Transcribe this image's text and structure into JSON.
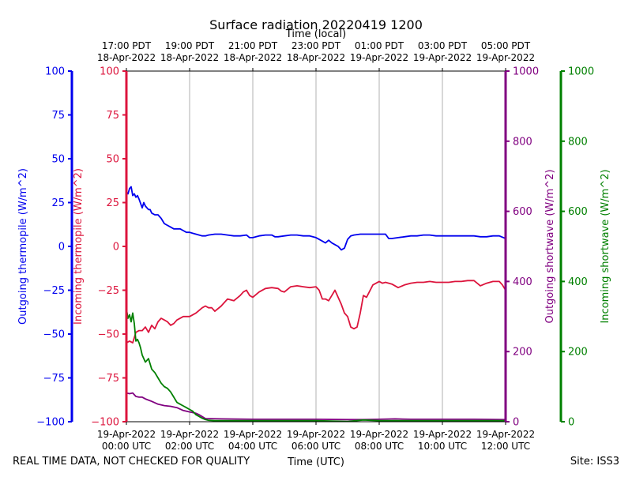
{
  "figure": {
    "title": "Surface radiation 20220419 1200",
    "top_xlabel": "Time (local)",
    "bottom_xlabel": "Time (UTC)",
    "footer_left": "REAL TIME DATA, NOT CHECKED FOR QUALITY",
    "footer_right": "Site: ISS3"
  },
  "colors": {
    "outgoing_thermopile": "#0000ee",
    "incoming_thermopile": "#dc143c",
    "outgoing_shortwave": "#800080",
    "incoming_shortwave": "#008000",
    "grid": "#b0b0b0",
    "text": "#000000"
  },
  "chart_data": {
    "type": "line",
    "x_unit": "hours since 19-Apr-2022 00:00 UTC",
    "xlim": [
      0,
      12
    ],
    "grid": {
      "x": true,
      "y": false
    },
    "bottom_ticks": [
      {
        "x": 0,
        "label": "19-Apr-2022",
        "sub": "00:00 UTC"
      },
      {
        "x": 2,
        "label": "19-Apr-2022",
        "sub": "02:00 UTC"
      },
      {
        "x": 4,
        "label": "19-Apr-2022",
        "sub": "04:00 UTC"
      },
      {
        "x": 6,
        "label": "19-Apr-2022",
        "sub": "06:00 UTC"
      },
      {
        "x": 8,
        "label": "19-Apr-2022",
        "sub": "08:00 UTC"
      },
      {
        "x": 10,
        "label": "19-Apr-2022",
        "sub": "10:00 UTC"
      },
      {
        "x": 12,
        "label": "19-Apr-2022",
        "sub": "12:00 UTC"
      }
    ],
    "top_ticks": [
      {
        "x": 0,
        "label": "17:00 PDT",
        "sub": "18-Apr-2022"
      },
      {
        "x": 2,
        "label": "19:00 PDT",
        "sub": "18-Apr-2022"
      },
      {
        "x": 4,
        "label": "21:00 PDT",
        "sub": "18-Apr-2022"
      },
      {
        "x": 6,
        "label": "23:00 PDT",
        "sub": "18-Apr-2022"
      },
      {
        "x": 8,
        "label": "01:00 PDT",
        "sub": "19-Apr-2022"
      },
      {
        "x": 10,
        "label": "03:00 PDT",
        "sub": "19-Apr-2022"
      },
      {
        "x": 12,
        "label": "05:00 PDT",
        "sub": "19-Apr-2022"
      }
    ],
    "axes": [
      {
        "id": "outgoing_thermopile",
        "label": "Outgoing thermopile (W/m^2)",
        "side": "left-outer",
        "ylim": [
          -100,
          100
        ],
        "ticks": [
          100,
          75,
          50,
          25,
          0,
          -25,
          -50,
          -75,
          -100
        ]
      },
      {
        "id": "incoming_thermopile",
        "label": "Incoming thermopile (W/m^2)",
        "side": "left-inner",
        "ylim": [
          -100,
          100
        ],
        "ticks": [
          100,
          75,
          50,
          25,
          0,
          -25,
          -50,
          -75,
          -100
        ]
      },
      {
        "id": "outgoing_shortwave",
        "label": "Outgoing shortwave (W/m^2)",
        "side": "right-inner",
        "ylim": [
          0,
          1000
        ],
        "ticks": [
          0,
          200,
          400,
          600,
          800,
          1000
        ]
      },
      {
        "id": "incoming_shortwave",
        "label": "Incoming shortwave (W/m^2)",
        "side": "right-outer",
        "ylim": [
          0,
          1000
        ],
        "ticks": [
          0,
          200,
          400,
          600,
          800,
          1000
        ]
      }
    ],
    "series": [
      {
        "name": "Outgoing thermopile (W/m^2)",
        "axis": "outgoing_thermopile",
        "x": [
          0,
          0.05,
          0.1,
          0.15,
          0.2,
          0.25,
          0.3,
          0.35,
          0.4,
          0.5,
          0.55,
          0.6,
          0.65,
          0.7,
          0.75,
          0.8,
          0.9,
          1.0,
          1.1,
          1.2,
          1.3,
          1.4,
          1.5,
          1.6,
          1.7,
          1.8,
          1.9,
          2.0,
          2.1,
          2.2,
          2.3,
          2.4,
          2.5,
          2.6,
          2.8,
          3.0,
          3.2,
          3.4,
          3.6,
          3.8,
          3.9,
          4.0,
          4.2,
          4.4,
          4.6,
          4.7,
          4.8,
          5.0,
          5.2,
          5.4,
          5.6,
          5.8,
          6.0,
          6.1,
          6.2,
          6.3,
          6.4,
          6.5,
          6.6,
          6.7,
          6.8,
          6.9,
          7.0,
          7.1,
          7.2,
          7.4,
          7.6,
          7.8,
          8.0,
          8.2,
          8.3,
          8.4,
          8.6,
          8.8,
          9.0,
          9.2,
          9.4,
          9.6,
          9.8,
          10.0,
          10.2,
          10.4,
          10.6,
          10.8,
          11.0,
          11.2,
          11.4,
          11.6,
          11.8,
          12.0
        ],
        "y": [
          31,
          30,
          33,
          34,
          29,
          30,
          28,
          29,
          27,
          22,
          25,
          23,
          22,
          21,
          21,
          19,
          18,
          18,
          16,
          13,
          12,
          11,
          10,
          10,
          10,
          9,
          8,
          8,
          7.5,
          7,
          6.5,
          6,
          6,
          6.5,
          7,
          7,
          6.5,
          6,
          6,
          6.5,
          5,
          5,
          6,
          6.5,
          6.5,
          5.5,
          5.5,
          6,
          6.5,
          6.5,
          6,
          6,
          5,
          4,
          3,
          2,
          3.5,
          2,
          1,
          0,
          -2,
          -1,
          4,
          6,
          6.5,
          7,
          7,
          7,
          7,
          7,
          4.5,
          4.5,
          5,
          5.5,
          6,
          6,
          6.5,
          6.5,
          6,
          6,
          6,
          6,
          6,
          6,
          6,
          5.5,
          5.5,
          6,
          6,
          4.5
        ]
      },
      {
        "name": "Incoming thermopile (W/m^2)",
        "axis": "incoming_thermopile",
        "x": [
          0,
          0.1,
          0.2,
          0.3,
          0.4,
          0.5,
          0.6,
          0.7,
          0.8,
          0.9,
          1.0,
          1.1,
          1.2,
          1.3,
          1.4,
          1.5,
          1.6,
          1.8,
          2.0,
          2.2,
          2.4,
          2.5,
          2.6,
          2.7,
          2.8,
          3.0,
          3.2,
          3.4,
          3.6,
          3.7,
          3.8,
          3.9,
          4.0,
          4.2,
          4.4,
          4.6,
          4.8,
          4.9,
          5.0,
          5.2,
          5.4,
          5.6,
          5.8,
          6.0,
          6.1,
          6.2,
          6.3,
          6.4,
          6.5,
          6.6,
          6.8,
          6.9,
          7.0,
          7.1,
          7.2,
          7.3,
          7.4,
          7.5,
          7.6,
          7.8,
          8.0,
          8.1,
          8.2,
          8.3,
          8.4,
          8.6,
          8.8,
          9.0,
          9.2,
          9.4,
          9.6,
          9.8,
          10.0,
          10.2,
          10.4,
          10.6,
          10.8,
          11.0,
          11.1,
          11.2,
          11.4,
          11.6,
          11.8,
          11.9,
          12.0
        ],
        "y": [
          -55,
          -54,
          -55,
          -49,
          -48,
          -48,
          -46,
          -49,
          -45,
          -47,
          -43,
          -41,
          -42,
          -43,
          -45,
          -44,
          -42,
          -40,
          -40,
          -38,
          -35,
          -34,
          -35,
          -35,
          -37,
          -34,
          -30,
          -31,
          -28,
          -26,
          -25,
          -28,
          -29,
          -26,
          -24,
          -23.5,
          -24,
          -25.5,
          -26,
          -23,
          -22.5,
          -23,
          -23.5,
          -23,
          -25,
          -30,
          -30,
          -31,
          -28,
          -25,
          -33,
          -38,
          -40,
          -46,
          -47,
          -46,
          -38,
          -28,
          -29,
          -22,
          -20,
          -21,
          -20.5,
          -21,
          -21.5,
          -23.5,
          -22,
          -21,
          -20.5,
          -20.5,
          -20,
          -20.5,
          -20.5,
          -20.5,
          -20,
          -20,
          -19.5,
          -19.5,
          -21,
          -22.5,
          -21,
          -20,
          -20,
          -22,
          -25
        ]
      },
      {
        "name": "Outgoing shortwave (W/m^2)",
        "axis": "outgoing_shortwave",
        "x": [
          0,
          0.1,
          0.2,
          0.3,
          0.4,
          0.5,
          0.6,
          0.8,
          1.0,
          1.2,
          1.4,
          1.6,
          1.8,
          2.0,
          2.2,
          2.3,
          2.5,
          3.0,
          4.0,
          5.0,
          6.0,
          7.0,
          7.5,
          8.0,
          8.5,
          9.0,
          10.0,
          11.0,
          12.0
        ],
        "y": [
          82,
          80,
          82,
          72,
          70,
          70,
          65,
          58,
          50,
          46,
          44,
          40,
          32,
          28,
          24,
          20,
          9,
          8,
          7,
          7,
          7,
          6,
          6,
          7,
          8,
          7,
          7,
          7,
          6
        ]
      },
      {
        "name": "Incoming shortwave (W/m^2)",
        "axis": "incoming_shortwave",
        "x": [
          0,
          0.05,
          0.1,
          0.15,
          0.2,
          0.25,
          0.3,
          0.35,
          0.4,
          0.45,
          0.5,
          0.6,
          0.7,
          0.8,
          0.9,
          1.0,
          1.1,
          1.2,
          1.3,
          1.4,
          1.5,
          1.6,
          1.7,
          1.8,
          1.9,
          2.0,
          2.1,
          2.2,
          2.3,
          2.4,
          2.5,
          2.6,
          2.8,
          3.0,
          4.0,
          5.0,
          6.0,
          7.0,
          7.5,
          8.0,
          9.0,
          10.0,
          11.0,
          12.0
        ],
        "y": [
          322,
          295,
          305,
          285,
          310,
          280,
          230,
          235,
          225,
          210,
          190,
          170,
          180,
          150,
          140,
          125,
          110,
          100,
          95,
          85,
          70,
          55,
          50,
          45,
          40,
          35,
          30,
          20,
          15,
          10,
          6,
          4,
          3,
          3,
          3,
          3,
          3,
          1,
          5,
          3,
          3,
          3,
          3,
          3
        ]
      }
    ]
  }
}
